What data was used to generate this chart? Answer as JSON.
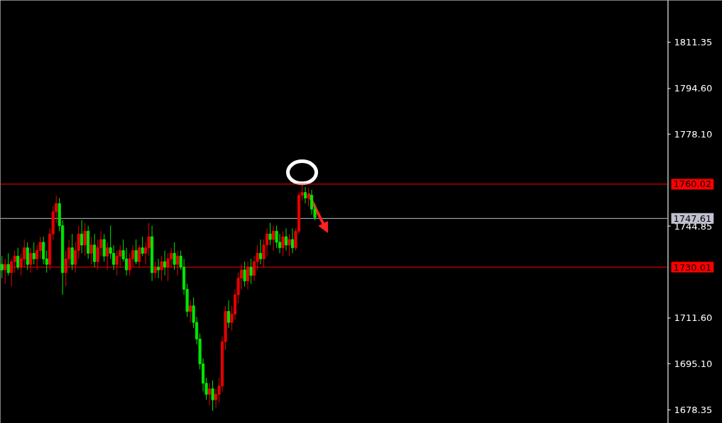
{
  "chart_data": {
    "type": "candlestick",
    "categories": [
      null,
      null,
      null,
      null,
      null,
      null,
      null,
      null,
      null,
      null,
      null,
      null,
      null,
      null,
      null,
      null,
      null,
      null,
      null,
      null,
      null,
      null,
      null,
      null,
      null,
      null,
      null,
      null,
      null,
      null,
      null,
      null,
      null,
      null,
      null,
      null,
      null,
      null,
      null,
      null,
      null,
      null,
      null,
      null,
      null,
      null,
      null,
      null,
      null,
      null,
      null,
      null,
      null,
      null,
      null,
      null,
      null,
      null,
      null,
      null,
      null,
      null,
      null,
      null,
      null,
      null,
      null,
      null,
      null,
      null,
      null,
      null,
      null,
      null,
      null,
      null,
      null,
      null,
      null,
      null,
      null,
      null,
      null,
      null,
      null,
      null,
      null,
      null,
      null,
      null,
      null,
      null,
      null,
      null,
      null,
      null,
      null,
      null,
      null,
      null,
      null,
      null,
      null,
      null,
      null,
      null,
      null,
      null,
      null,
      null,
      null,
      null,
      null,
      null,
      null,
      null,
      null,
      null,
      null,
      null,
      null,
      null,
      null,
      null,
      null,
      null,
      null,
      null,
      null,
      null,
      null,
      null,
      null,
      null,
      null,
      null,
      null,
      null,
      null,
      null,
      null,
      null,
      null,
      null,
      null,
      null,
      null,
      null,
      null,
      null,
      null,
      null,
      null,
      null,
      null,
      null,
      null,
      null,
      null,
      null,
      null,
      null,
      null,
      null,
      null,
      null,
      null,
      null,
      null,
      null,
      null,
      null,
      null,
      null,
      null,
      null,
      null,
      null,
      null,
      null,
      null,
      null,
      null,
      null,
      null,
      null,
      null,
      null,
      null,
      null,
      null,
      null,
      null,
      null,
      null,
      null,
      null,
      null,
      null,
      null,
      null,
      null,
      null,
      null,
      null,
      null,
      null,
      null,
      null
    ],
    "ohlc": [
      [
        1731,
        1734,
        1726,
        1729
      ],
      [
        1729,
        1733,
        1724,
        1731
      ],
      [
        1731,
        1735,
        1727,
        1728
      ],
      [
        1728,
        1733,
        1723,
        1732
      ],
      [
        1732,
        1736,
        1728,
        1734
      ],
      [
        1734,
        1737,
        1729,
        1730
      ],
      [
        1730,
        1735,
        1727,
        1733
      ],
      [
        1733,
        1740,
        1730,
        1737
      ],
      [
        1737,
        1739,
        1729,
        1731
      ],
      [
        1731,
        1737,
        1728,
        1735
      ],
      [
        1735,
        1739,
        1731,
        1733
      ],
      [
        1733,
        1738,
        1729,
        1736
      ],
      [
        1736,
        1741,
        1733,
        1739
      ],
      [
        1739,
        1741,
        1731,
        1733
      ],
      [
        1733,
        1736,
        1728,
        1731
      ],
      [
        1731,
        1744,
        1729,
        1742
      ],
      [
        1742,
        1752,
        1740,
        1750
      ],
      [
        1750,
        1756,
        1746,
        1753
      ],
      [
        1753,
        1755,
        1743,
        1745
      ],
      [
        1745,
        1747,
        1720,
        1728
      ],
      [
        1728,
        1736,
        1723,
        1733
      ],
      [
        1733,
        1740,
        1730,
        1737
      ],
      [
        1737,
        1742,
        1729,
        1731
      ],
      [
        1731,
        1739,
        1728,
        1736
      ],
      [
        1736,
        1745,
        1733,
        1742
      ],
      [
        1742,
        1747,
        1735,
        1738
      ],
      [
        1738,
        1746,
        1734,
        1743
      ],
      [
        1743,
        1745,
        1733,
        1735
      ],
      [
        1735,
        1741,
        1731,
        1738
      ],
      [
        1738,
        1742,
        1730,
        1732
      ],
      [
        1732,
        1740,
        1729,
        1737
      ],
      [
        1737,
        1743,
        1734,
        1740
      ],
      [
        1740,
        1742,
        1732,
        1734
      ],
      [
        1734,
        1739,
        1729,
        1737
      ],
      [
        1737,
        1745,
        1733,
        1735
      ],
      [
        1735,
        1738,
        1729,
        1731
      ],
      [
        1731,
        1736,
        1727,
        1734
      ],
      [
        1734,
        1738,
        1730,
        1736
      ],
      [
        1736,
        1740,
        1732,
        1733
      ],
      [
        1733,
        1737,
        1727,
        1729
      ],
      [
        1729,
        1735,
        1727,
        1733
      ],
      [
        1733,
        1738,
        1730,
        1736
      ],
      [
        1736,
        1740,
        1731,
        1732
      ],
      [
        1732,
        1738,
        1730,
        1737
      ],
      [
        1737,
        1741,
        1734,
        1735
      ],
      [
        1735,
        1739,
        1731,
        1737
      ],
      [
        1737,
        1746,
        1734,
        1741
      ],
      [
        1741,
        1745,
        1725,
        1728
      ],
      [
        1728,
        1732,
        1726,
        1730
      ],
      [
        1730,
        1733,
        1726,
        1729
      ],
      [
        1729,
        1734,
        1725,
        1732
      ],
      [
        1732,
        1736,
        1727,
        1730
      ],
      [
        1730,
        1735,
        1725,
        1733
      ],
      [
        1733,
        1737,
        1730,
        1735
      ],
      [
        1735,
        1739,
        1729,
        1731
      ],
      [
        1731,
        1736,
        1727,
        1734
      ],
      [
        1734,
        1736,
        1729,
        1730
      ],
      [
        1730,
        1733,
        1720,
        1722
      ],
      [
        1722,
        1724,
        1712,
        1714
      ],
      [
        1714,
        1718,
        1710,
        1716
      ],
      [
        1716,
        1719,
        1708,
        1710
      ],
      [
        1710,
        1712,
        1702,
        1704
      ],
      [
        1704,
        1706,
        1693,
        1695
      ],
      [
        1695,
        1697,
        1685,
        1688
      ],
      [
        1688,
        1690,
        1682,
        1684
      ],
      [
        1684,
        1688,
        1680,
        1686
      ],
      [
        1686,
        1689,
        1678,
        1682
      ],
      [
        1682,
        1686,
        1679,
        1684
      ],
      [
        1684,
        1690,
        1681,
        1687
      ],
      [
        1687,
        1705,
        1685,
        1703
      ],
      [
        1703,
        1716,
        1700,
        1714
      ],
      [
        1714,
        1718,
        1708,
        1710
      ],
      [
        1710,
        1716,
        1707,
        1713
      ],
      [
        1713,
        1722,
        1711,
        1720
      ],
      [
        1720,
        1728,
        1717,
        1726
      ],
      [
        1726,
        1731,
        1722,
        1729
      ],
      [
        1729,
        1732,
        1723,
        1725
      ],
      [
        1725,
        1732,
        1722,
        1730
      ],
      [
        1730,
        1733,
        1724,
        1727
      ],
      [
        1727,
        1734,
        1725,
        1732
      ],
      [
        1732,
        1738,
        1729,
        1735
      ],
      [
        1735,
        1740,
        1731,
        1733
      ],
      [
        1733,
        1740,
        1730,
        1738
      ],
      [
        1738,
        1744,
        1734,
        1742
      ],
      [
        1742,
        1746,
        1738,
        1740
      ],
      [
        1740,
        1745,
        1736,
        1743
      ],
      [
        1743,
        1745,
        1737,
        1739
      ],
      [
        1739,
        1742,
        1735,
        1737
      ],
      [
        1737,
        1743,
        1734,
        1741
      ],
      [
        1741,
        1744,
        1736,
        1738
      ],
      [
        1738,
        1742,
        1734,
        1740
      ],
      [
        1740,
        1744,
        1735,
        1737
      ],
      [
        1737,
        1744,
        1736,
        1743
      ],
      [
        1743,
        1757,
        1742,
        1756
      ],
      [
        1756,
        1759.5,
        1754,
        1757
      ],
      [
        1757,
        1759,
        1753,
        1755
      ],
      [
        1755,
        1758.5,
        1752,
        1756
      ],
      [
        1756,
        1758,
        1749,
        1751
      ],
      [
        1751,
        1753,
        1747,
        1748
      ],
      null,
      null,
      null,
      null,
      null,
      null,
      null,
      null,
      null,
      null,
      null,
      null,
      null,
      null,
      null,
      null,
      null,
      null,
      null,
      null,
      null,
      null,
      null,
      null,
      null,
      null,
      null,
      null,
      null,
      null,
      null,
      null,
      null,
      null,
      null,
      null,
      null,
      null,
      null,
      null,
      null,
      null,
      null,
      null,
      null,
      null,
      null,
      null,
      null,
      null,
      null,
      null,
      null,
      null,
      null,
      null,
      null,
      null,
      null,
      null,
      null,
      null,
      null,
      null,
      null,
      null,
      null,
      null,
      null,
      null,
      null,
      null,
      null,
      null,
      null,
      null,
      null,
      null,
      null,
      null,
      null,
      null,
      null,
      null,
      null,
      null,
      null,
      null,
      null,
      null,
      null,
      null,
      null,
      null,
      null,
      null,
      null,
      null,
      null,
      null,
      null,
      null,
      null,
      null,
      null,
      null,
      null,
      null,
      null,
      null
    ],
    "colors": [
      "#00e600",
      "#e60000",
      "#00e600",
      "#e60000",
      "#e60000",
      "#00e600",
      "#e60000",
      "#e60000",
      "#00e600",
      "#e60000",
      "#00e600",
      "#e60000",
      "#e60000",
      "#00e600",
      "#00e600",
      "#e60000",
      "#e60000",
      "#e60000",
      "#00e600",
      "#00e600",
      "#e60000",
      "#e60000",
      "#00e600",
      "#e60000",
      "#e60000",
      "#00e600",
      "#e60000",
      "#00e600",
      "#e60000",
      "#00e600",
      "#e60000",
      "#e60000",
      "#00e600",
      "#e60000",
      "#00e600",
      "#00e600",
      "#e60000",
      "#e60000",
      "#00e600",
      "#00e600",
      "#e60000",
      "#e60000",
      "#00e600",
      "#e60000",
      "#00e600",
      "#e60000",
      "#e60000",
      "#00e600",
      "#e60000",
      "#00e600",
      "#e60000",
      "#00e600",
      "#e60000",
      "#e60000",
      "#00e600",
      "#e60000",
      "#00e600",
      "#00e600",
      "#00e600",
      "#e60000",
      "#00e600",
      "#00e600",
      "#00e600",
      "#00e600",
      "#00e600",
      "#e60000",
      "#00e600",
      "#e60000",
      "#e60000",
      "#e60000",
      "#e60000",
      "#00e600",
      "#e60000",
      "#e60000",
      "#e60000",
      "#e60000",
      "#00e600",
      "#e60000",
      "#00e600",
      "#e60000",
      "#e60000",
      "#00e600",
      "#e60000",
      "#e60000",
      "#00e600",
      "#e60000",
      "#00e600",
      "#00e600",
      "#e60000",
      "#00e600",
      "#e60000",
      "#00e600",
      "#e60000",
      "#e60000",
      "#e60000",
      "#00e600",
      "#e60000",
      "#00e600",
      "#00e600",
      null,
      null,
      null,
      null,
      null,
      null,
      null,
      null,
      null,
      null,
      null,
      null,
      null,
      null,
      null,
      null,
      null,
      null,
      null,
      null,
      null,
      null,
      null,
      null,
      null,
      null,
      null,
      null,
      null,
      null,
      null,
      null,
      null,
      null,
      null,
      null,
      null,
      null,
      null,
      null,
      null,
      null,
      null,
      null,
      null,
      null,
      null,
      null,
      null,
      null,
      null,
      null,
      null,
      null,
      null,
      null,
      null,
      null,
      null,
      null,
      null,
      null,
      null,
      null,
      null,
      null,
      null,
      null,
      null,
      null,
      null,
      null,
      null,
      null,
      null,
      null,
      null,
      null,
      null,
      null,
      null,
      null,
      null,
      null,
      null,
      null,
      null,
      null,
      null,
      null,
      null,
      null,
      null,
      null,
      null,
      null,
      null,
      null,
      null,
      null,
      null,
      null,
      null,
      null,
      null,
      null,
      null,
      null,
      null,
      null
    ],
    "ylim": [
      1673.5,
      1826.5
    ],
    "yticks": [
      {
        "value": 1678.35,
        "label": "1678.35"
      },
      {
        "value": 1695.1,
        "label": "1695.10"
      },
      {
        "value": 1711.6,
        "label": "1711.60"
      },
      {
        "value": 1744.85,
        "label": "1744.85"
      },
      {
        "value": 1778.1,
        "label": "1778.10"
      },
      {
        "value": 1794.6,
        "label": "1794.60"
      },
      {
        "value": 1811.35,
        "label": "1811.35"
      }
    ],
    "ref_lines": [
      {
        "axis": "y",
        "value": 1760.02,
        "label": "1760.02",
        "color": "#ff0000"
      },
      {
        "axis": "y",
        "value": 1747.61,
        "label": "1747.61",
        "color": "#c0c0d0"
      },
      {
        "axis": "y",
        "value": 1730.01,
        "label": "1730.01",
        "color": "#ff0000"
      }
    ],
    "tick_labels": "y",
    "grid": false
  }
}
